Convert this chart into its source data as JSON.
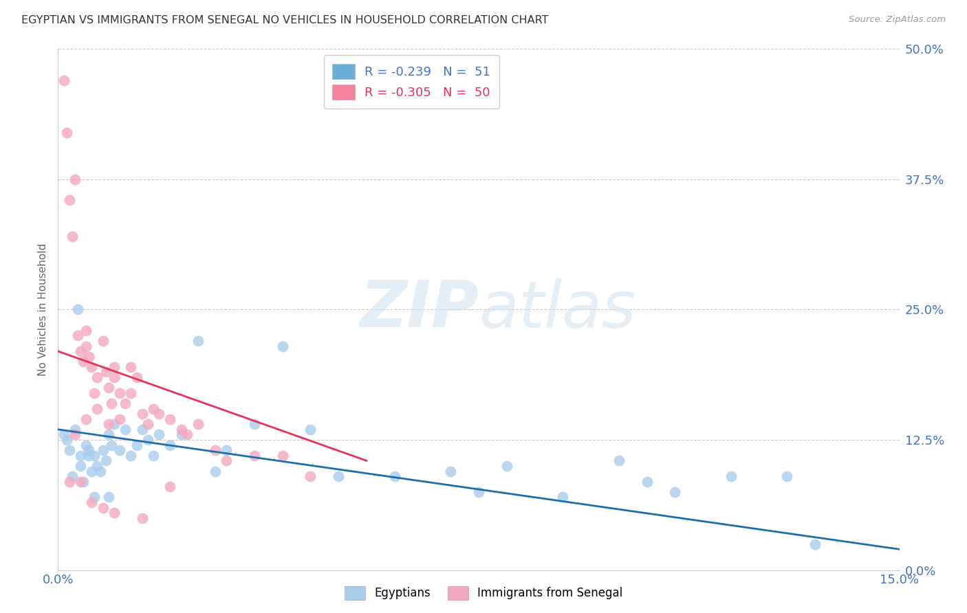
{
  "title": "EGYPTIAN VS IMMIGRANTS FROM SENEGAL NO VEHICLES IN HOUSEHOLD CORRELATION CHART",
  "source": "Source: ZipAtlas.com",
  "ylabel_label": "No Vehicles in Household",
  "ylabel_ticks": [
    0.0,
    12.5,
    25.0,
    37.5,
    50.0
  ],
  "xlim": [
    0.0,
    15.0
  ],
  "ylim": [
    0.0,
    50.0
  ],
  "legend1_label": "R = -0.239   N =  51",
  "legend2_label": "R = -0.305   N =  50",
  "legend1_color": "#6baed6",
  "legend2_color": "#f4849e",
  "scatter_color_blue": "#a8ccee",
  "scatter_color_pink": "#f4a8bf",
  "trendline_color_blue": "#1a6faf",
  "trendline_color_pink": "#e8305a",
  "watermark_zip": "ZIP",
  "watermark_atlas": "atlas",
  "legend_bottom_label1": "Egyptians",
  "legend_bottom_label2": "Immigrants from Senegal",
  "egyptians_x": [
    0.1,
    0.15,
    0.2,
    0.3,
    0.35,
    0.4,
    0.4,
    0.5,
    0.55,
    0.6,
    0.65,
    0.7,
    0.75,
    0.8,
    0.85,
    0.9,
    0.95,
    1.0,
    1.1,
    1.2,
    1.3,
    1.4,
    1.5,
    1.6,
    1.7,
    1.8,
    2.0,
    2.2,
    2.5,
    2.8,
    3.0,
    3.5,
    4.0,
    4.5,
    5.0,
    6.0,
    7.0,
    7.5,
    8.0,
    9.0,
    10.0,
    10.5,
    11.0,
    12.0,
    13.0,
    13.5,
    0.25,
    0.45,
    0.55,
    0.65,
    0.9
  ],
  "egyptians_y": [
    13.0,
    12.5,
    11.5,
    13.5,
    25.0,
    11.0,
    10.0,
    12.0,
    11.5,
    9.5,
    11.0,
    10.0,
    9.5,
    11.5,
    10.5,
    13.0,
    12.0,
    14.0,
    11.5,
    13.5,
    11.0,
    12.0,
    13.5,
    12.5,
    11.0,
    13.0,
    12.0,
    13.0,
    22.0,
    9.5,
    11.5,
    14.0,
    21.5,
    13.5,
    9.0,
    9.0,
    9.5,
    7.5,
    10.0,
    7.0,
    10.5,
    8.5,
    7.5,
    9.0,
    9.0,
    2.5,
    9.0,
    8.5,
    11.0,
    7.0,
    7.0
  ],
  "senegal_x": [
    0.1,
    0.15,
    0.2,
    0.25,
    0.3,
    0.35,
    0.4,
    0.45,
    0.5,
    0.5,
    0.55,
    0.6,
    0.65,
    0.7,
    0.8,
    0.85,
    0.9,
    0.95,
    1.0,
    1.0,
    1.1,
    1.2,
    1.3,
    1.4,
    1.5,
    1.6,
    1.7,
    1.8,
    2.0,
    2.2,
    2.5,
    2.8,
    3.0,
    3.5,
    4.0,
    4.5,
    0.3,
    0.5,
    0.7,
    0.9,
    1.1,
    1.3,
    2.3,
    0.2,
    0.4,
    0.6,
    0.8,
    1.0,
    1.5,
    2.0
  ],
  "senegal_y": [
    47.0,
    42.0,
    35.5,
    32.0,
    37.5,
    22.5,
    21.0,
    20.0,
    21.5,
    23.0,
    20.5,
    19.5,
    17.0,
    18.5,
    22.0,
    19.0,
    17.5,
    16.0,
    19.5,
    18.5,
    17.0,
    16.0,
    19.5,
    18.5,
    15.0,
    14.0,
    15.5,
    15.0,
    14.5,
    13.5,
    14.0,
    11.5,
    10.5,
    11.0,
    11.0,
    9.0,
    13.0,
    14.5,
    15.5,
    14.0,
    14.5,
    17.0,
    13.0,
    8.5,
    8.5,
    6.5,
    6.0,
    5.5,
    5.0,
    8.0
  ],
  "blue_trend_x": [
    0.0,
    15.0
  ],
  "blue_trend_y": [
    13.5,
    2.0
  ],
  "pink_trend_x": [
    0.0,
    5.5
  ],
  "pink_trend_y": [
    21.0,
    10.5
  ]
}
